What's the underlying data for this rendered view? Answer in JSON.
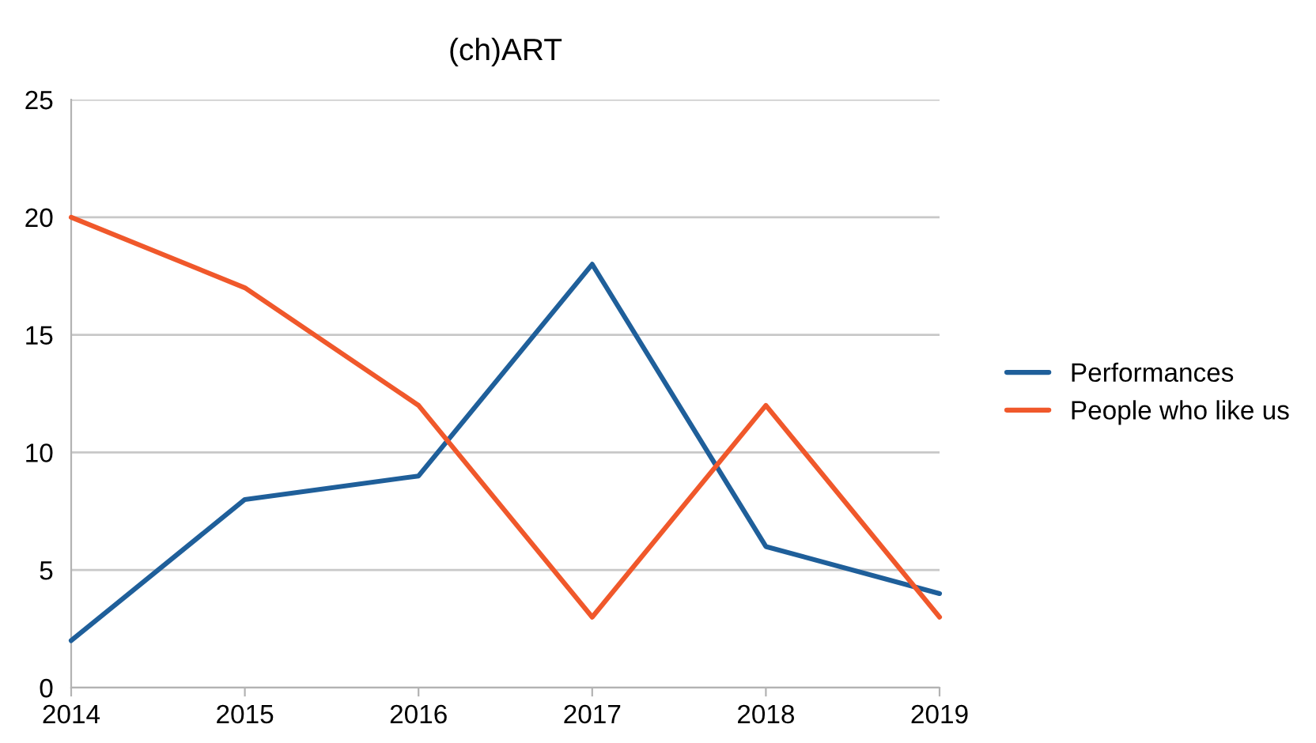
{
  "chart_data": {
    "type": "line",
    "title": "(ch)ART",
    "x": [
      2014,
      2015,
      2016,
      2017,
      2018,
      2019
    ],
    "series": [
      {
        "name": "Performances",
        "color": "#1f5f9a",
        "values": [
          2,
          8,
          9,
          18,
          6,
          4
        ]
      },
      {
        "name": "People who like us",
        "color": "#f0582b",
        "values": [
          20,
          17,
          12,
          3,
          12,
          3
        ]
      }
    ],
    "xlim": [
      2014,
      2019
    ],
    "xticks": [
      2014,
      2015,
      2016,
      2017,
      2018,
      2019
    ],
    "ylim": [
      0,
      25
    ],
    "yticks": [
      0,
      5,
      10,
      15,
      20,
      25
    ],
    "grid": "y",
    "legend": "right",
    "marker": "none",
    "line_style": "solid"
  }
}
